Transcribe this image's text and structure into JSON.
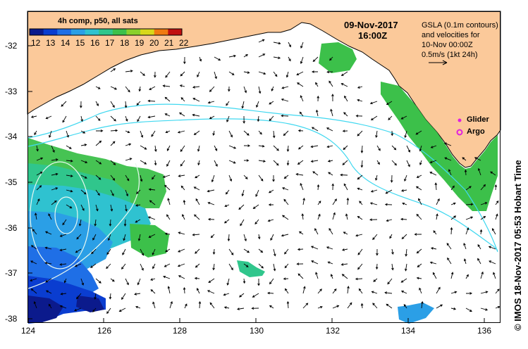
{
  "colorbar": {
    "title": "4h comp, p50, all sats",
    "labels": [
      "12",
      "13",
      "14",
      "15",
      "16",
      "17",
      "18",
      "19",
      "20",
      "21",
      "22"
    ],
    "colors": [
      "#0b1a8c",
      "#0a3dd0",
      "#1f6fe6",
      "#2b9fe6",
      "#2fc2d0",
      "#30c68c",
      "#3cc04a",
      "#8ad02c",
      "#d8d81a",
      "#f07a10",
      "#c01010"
    ]
  },
  "header": {
    "date": "09-Nov-2017",
    "time": "16:00Z"
  },
  "gsla_note": {
    "line1": "GSLA (0.1m contours)",
    "line2": "and velocities for",
    "line3": "10-Nov 00:00Z",
    "line4": "0.5m/s (1kt 24h)"
  },
  "legend": {
    "glider_label": "Glider",
    "argo_label": "Argo",
    "glider_color": "#e020e0",
    "argo_color": "#e020e0"
  },
  "axes": {
    "lon_ticks": [
      "124",
      "126",
      "128",
      "130",
      "132",
      "134",
      "136"
    ],
    "lat_ticks": [
      "-32",
      "-33",
      "-34",
      "-35",
      "-36",
      "-37",
      "-38"
    ]
  },
  "credit": "© IMOS 18-Nov-2017 05:53 Hobart Time",
  "colors": {
    "land": "#fbc99a",
    "ocean": "#ffffff",
    "contour": "#40d8f0",
    "arrow": "#000000"
  }
}
